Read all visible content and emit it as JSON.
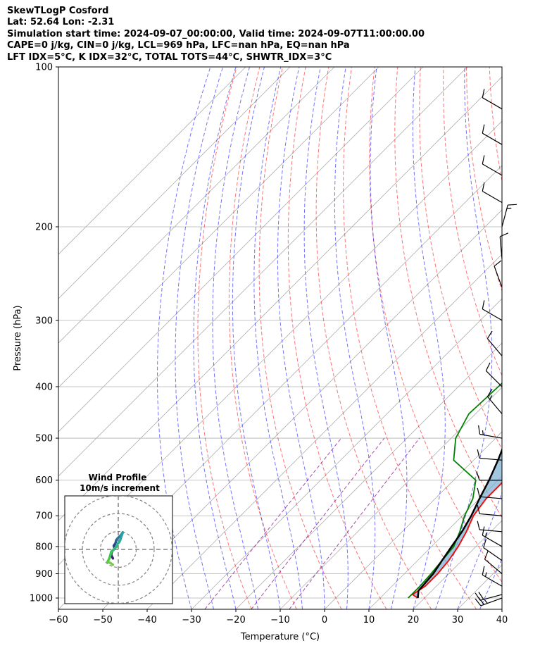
{
  "header": {
    "title": "SkewTLogP Cosford",
    "location": "Lat: 52.64   Lon: -2.31",
    "times": "Simulation start time: 2024-09-07_00:00:00, Valid time: 2024-09-07T11:00:00.00",
    "indices1": "CAPE=0 j/kg, CIN=0 j/kg, LCL=969 hPa, LFC=nan hPa, EQ=nan hPa",
    "indices2": "LFT IDX=5°C, K IDX=32°C, TOTAL TOTS=44°C, SHWTR_IDX=3°C"
  },
  "chart_data": [
    {
      "type": "skewt",
      "xlabel": "Temperature (°C)",
      "ylabel": "Pressure (hPa)",
      "xlim": [
        -60,
        40
      ],
      "ylim": [
        1050,
        100
      ],
      "x_ticks": [
        -60,
        -50,
        -40,
        -30,
        -20,
        -10,
        0,
        10,
        20,
        30,
        40
      ],
      "y_ticks": [
        1000,
        900,
        800,
        700,
        600,
        500,
        400,
        300,
        200,
        100
      ],
      "grid": true,
      "colors": {
        "temperature": "#ff0000",
        "dewpoint": "#008000",
        "parcel": "#000000",
        "cape_fill": "#7aaed2",
        "dry_adiabats": "#ff0000",
        "moist_adiabats": "#0000ff",
        "mixing_ratio": "#800080",
        "isotherms": "#808080"
      },
      "series": [
        {
          "key": "temperature",
          "points": [
            [
              18.5,
              1000
            ],
            [
              16.5,
              985
            ],
            [
              17.5,
              950
            ],
            [
              17.5,
              900
            ],
            [
              17,
              850
            ],
            [
              16,
              800
            ],
            [
              14.5,
              750
            ],
            [
              12.5,
              700
            ],
            [
              11.5,
              650
            ],
            [
              11.5,
              600
            ],
            [
              11,
              550
            ],
            [
              10,
              500
            ],
            [
              8,
              450
            ],
            [
              5,
              400
            ],
            [
              1.5,
              350
            ],
            [
              -4,
              300
            ],
            [
              -11,
              250
            ],
            [
              -11,
              225
            ],
            [
              -10,
              200
            ],
            [
              -5,
              175
            ],
            [
              3,
              150
            ],
            [
              12,
              125
            ],
            [
              17,
              100
            ]
          ]
        },
        {
          "key": "dewpoint",
          "points": [
            [
              16.3,
              1000
            ],
            [
              16.3,
              950
            ],
            [
              16,
              900
            ],
            [
              15.5,
              850
            ],
            [
              15,
              800
            ],
            [
              13,
              750
            ],
            [
              10.5,
              700
            ],
            [
              8.5,
              650
            ],
            [
              5,
              600
            ],
            [
              -4.5,
              550
            ],
            [
              -9,
              500
            ],
            [
              -11.5,
              450
            ],
            [
              -11,
              400
            ],
            [
              -10.5,
              350
            ],
            [
              -10,
              325
            ],
            [
              -7.5,
              290
            ],
            [
              -15,
              235
            ],
            [
              -11,
              210
            ],
            [
              -10,
              200
            ],
            [
              -16,
              180
            ],
            [
              -28,
              160
            ],
            [
              -42,
              100
            ]
          ]
        },
        {
          "key": "parcel",
          "points": [
            [
              18.5,
              1000
            ],
            [
              17,
              969
            ],
            [
              16.5,
              900
            ],
            [
              15.5,
              850
            ],
            [
              14.5,
              800
            ],
            [
              13.5,
              750
            ],
            [
              12,
              700
            ],
            [
              10,
              650
            ],
            [
              8,
              600
            ],
            [
              5.5,
              550
            ],
            [
              2.5,
              500
            ],
            [
              -1,
              450
            ],
            [
              -5.5,
              400
            ],
            [
              -11,
              350
            ],
            [
              -18,
              300
            ],
            [
              -28,
              250
            ],
            [
              -41,
              200
            ],
            [
              -59,
              150
            ],
            [
              -80,
              100
            ]
          ]
        }
      ]
    },
    {
      "type": "hodograph",
      "title": "Wind Profile",
      "subtitle": "10m/s increment",
      "ring_speeds": [
        10,
        20,
        30
      ]
    }
  ],
  "winds": [
    [
      1000,
      250,
      24
    ],
    [
      985,
      255,
      20
    ],
    [
      950,
      300,
      15
    ],
    [
      900,
      310,
      10
    ],
    [
      850,
      305,
      10
    ],
    [
      800,
      300,
      15
    ],
    [
      750,
      275,
      10
    ],
    [
      700,
      275,
      10
    ],
    [
      650,
      275,
      10
    ],
    [
      600,
      270,
      10
    ],
    [
      550,
      275,
      10
    ],
    [
      500,
      280,
      15
    ],
    [
      450,
      320,
      15
    ],
    [
      400,
      315,
      10
    ],
    [
      350,
      320,
      10
    ],
    [
      300,
      300,
      10
    ],
    [
      260,
      340,
      10
    ],
    [
      230,
      355,
      10
    ],
    [
      200,
      15,
      15
    ],
    [
      180,
      300,
      10
    ],
    [
      160,
      300,
      10
    ],
    [
      140,
      300,
      10
    ],
    [
      120,
      300,
      10
    ]
  ],
  "hodograph_points": [
    [
      -3,
      -5
    ],
    [
      -4,
      -3
    ],
    [
      -3.5,
      -1
    ],
    [
      -2,
      0.5
    ],
    [
      -2.5,
      2
    ],
    [
      -1.5,
      3.5
    ],
    [
      -1.2,
      5
    ],
    [
      -0.5,
      6
    ],
    [
      1.5,
      8
    ],
    [
      2.5,
      9.5
    ],
    [
      1,
      5
    ],
    [
      0.5,
      4
    ],
    [
      -0.5,
      3
    ],
    [
      -1,
      1.5
    ],
    [
      -3,
      -0.5
    ],
    [
      -4,
      -1.5
    ],
    [
      -4.5,
      -3.5
    ],
    [
      -5,
      -5
    ],
    [
      -6,
      -7
    ],
    [
      -4.5,
      -7.5
    ],
    [
      -3,
      -8.5
    ]
  ]
}
